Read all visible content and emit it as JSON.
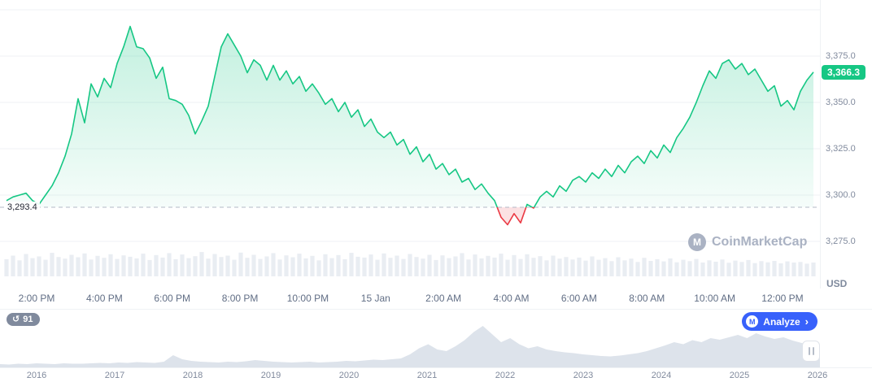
{
  "watermark": {
    "text": "CoinMarketCap",
    "logo_glyph": "M"
  },
  "history_badge": {
    "count": "91",
    "icon_glyph": "↺"
  },
  "analyze_button": {
    "label": "Analyze",
    "chevron": "›",
    "logo_glyph": "M"
  },
  "colors": {
    "up": "#16c784",
    "down": "#ea3943",
    "accent_blue": "#3861fb",
    "axis_text": "#808a9d",
    "grid": "#eff2f5"
  },
  "chart_data": [
    {
      "type": "area",
      "title": "",
      "ylabel": "USD",
      "legend": false,
      "grid": true,
      "ylim": [
        3268,
        3402
      ],
      "x_tick_labels": [
        "2:00 PM",
        "4:00 PM",
        "6:00 PM",
        "8:00 PM",
        "10:00 PM",
        "15 Jan",
        "2:00 AM",
        "4:00 AM",
        "6:00 AM",
        "8:00 AM",
        "10:00 AM",
        "12:00 PM"
      ],
      "y_ticks": [
        3375,
        3350,
        3325,
        3300,
        3275
      ],
      "y_tick_labels": [
        "3,375.0",
        "3,350.0",
        "3,325.0",
        "3,300.0",
        "3,275.0"
      ],
      "open_price": 3293.4,
      "open_price_label": "3,293.4",
      "last_price": 3366.3,
      "last_price_label": "3,366.3",
      "line_color": "#16c784",
      "down_color": "#ea3943",
      "prices": [
        3297,
        3299,
        3300,
        3301,
        3297,
        3295,
        3300,
        3305,
        3312,
        3321,
        3333,
        3352,
        3339,
        3360,
        3353,
        3363,
        3358,
        3371,
        3380,
        3391,
        3380,
        3379,
        3374,
        3363,
        3369,
        3352,
        3351,
        3349,
        3343,
        3333,
        3340,
        3348,
        3364,
        3380,
        3387,
        3381,
        3375,
        3366,
        3373,
        3370,
        3362,
        3370,
        3362,
        3367,
        3360,
        3364,
        3356,
        3360,
        3355,
        3349,
        3352,
        3345,
        3350,
        3342,
        3346,
        3337,
        3341,
        3334,
        3331,
        3334,
        3327,
        3330,
        3322,
        3326,
        3318,
        3322,
        3314,
        3317,
        3311,
        3314,
        3307,
        3309,
        3303,
        3306,
        3301,
        3297,
        3288,
        3284,
        3290,
        3285,
        3295,
        3293,
        3299,
        3302,
        3299,
        3305,
        3302,
        3308,
        3310,
        3307,
        3312,
        3309,
        3314,
        3310,
        3316,
        3312,
        3318,
        3321,
        3317,
        3324,
        3320,
        3327,
        3323,
        3331,
        3336,
        3342,
        3350,
        3359,
        3367,
        3363,
        3371,
        3373,
        3368,
        3371,
        3365,
        3368,
        3362,
        3356,
        3359,
        3348,
        3351,
        3346,
        3356,
        3362,
        3366.3
      ],
      "volume": [
        0.62,
        0.75,
        0.58,
        0.81,
        0.66,
        0.72,
        0.6,
        0.85,
        0.7,
        0.64,
        0.78,
        0.69,
        0.83,
        0.61,
        0.74,
        0.67,
        0.8,
        0.63,
        0.76,
        0.71,
        0.65,
        0.82,
        0.59,
        0.77,
        0.68,
        0.84,
        0.62,
        0.79,
        0.66,
        0.73,
        0.88,
        0.64,
        0.81,
        0.7,
        0.75,
        0.6,
        0.86,
        0.67,
        0.78,
        0.63,
        0.72,
        0.84,
        0.61,
        0.76,
        0.69,
        0.82,
        0.65,
        0.74,
        0.58,
        0.8,
        0.66,
        0.77,
        0.62,
        0.85,
        0.71,
        0.68,
        0.79,
        0.6,
        0.83,
        0.67,
        0.75,
        0.63,
        0.81,
        0.7,
        0.64,
        0.78,
        0.59,
        0.76,
        0.66,
        0.72,
        0.84,
        0.61,
        0.79,
        0.65,
        0.74,
        0.68,
        0.82,
        0.6,
        0.77,
        0.63,
        0.8,
        0.67,
        0.73,
        0.58,
        0.75,
        0.64,
        0.7,
        0.61,
        0.68,
        0.57,
        0.72,
        0.6,
        0.66,
        0.55,
        0.69,
        0.58,
        0.64,
        0.52,
        0.67,
        0.56,
        0.62,
        0.54,
        0.65,
        0.51,
        0.6,
        0.55,
        0.63,
        0.5,
        0.58,
        0.53,
        0.61,
        0.49,
        0.57,
        0.52,
        0.59,
        0.48,
        0.55,
        0.51,
        0.56,
        0.47,
        0.54,
        0.5,
        0.52,
        0.46,
        0.5
      ]
    },
    {
      "type": "area",
      "title": "history navigator",
      "x_tick_labels": [
        "2016",
        "2017",
        "2018",
        "2019",
        "2020",
        "2021",
        "2022",
        "2023",
        "2024",
        "2025",
        "2026"
      ],
      "values": [
        0.06,
        0.05,
        0.07,
        0.06,
        0.08,
        0.07,
        0.06,
        0.08,
        0.07,
        0.07,
        0.08,
        0.09,
        0.08,
        0.1,
        0.09,
        0.11,
        0.1,
        0.09,
        0.12,
        0.28,
        0.18,
        0.14,
        0.12,
        0.11,
        0.1,
        0.12,
        0.11,
        0.13,
        0.16,
        0.14,
        0.12,
        0.11,
        0.1,
        0.11,
        0.12,
        0.1,
        0.11,
        0.12,
        0.14,
        0.13,
        0.15,
        0.17,
        0.16,
        0.18,
        0.2,
        0.3,
        0.45,
        0.55,
        0.42,
        0.38,
        0.5,
        0.65,
        0.85,
        1.0,
        0.8,
        0.6,
        0.7,
        0.55,
        0.45,
        0.5,
        0.42,
        0.38,
        0.35,
        0.33,
        0.3,
        0.28,
        0.26,
        0.25,
        0.27,
        0.3,
        0.33,
        0.38,
        0.45,
        0.52,
        0.6,
        0.55,
        0.65,
        0.6,
        0.7,
        0.66,
        0.72,
        0.78,
        0.7,
        0.82,
        0.74,
        0.68,
        0.72,
        0.64,
        0.58,
        0.54,
        0.5
      ]
    }
  ]
}
